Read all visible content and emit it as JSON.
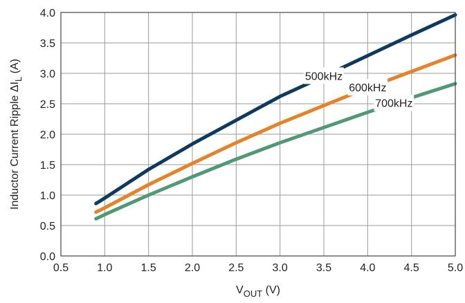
{
  "chart_data": {
    "type": "line",
    "xlabel": {
      "main": "V",
      "sub": "OUT",
      "unit": " (V)"
    },
    "ylabel": {
      "main": "Inductor Current Ripple  ΔI",
      "sub": "L",
      "unit": " (A)"
    },
    "xlim": [
      0.5,
      5.0
    ],
    "ylim": [
      0.0,
      4.0
    ],
    "xticks": [
      "0.5",
      "1.0",
      "1.5",
      "2.0",
      "2.5",
      "3.0",
      "3.5",
      "4.0",
      "4.5",
      "5.0"
    ],
    "yticks": [
      "0.0",
      "0.5",
      "1.0",
      "1.5",
      "2.0",
      "2.5",
      "3.0",
      "3.5",
      "4.0"
    ],
    "grid": true,
    "series": [
      {
        "name": "500kHz",
        "color": "#0f3a5f",
        "x": [
          0.9,
          1.0,
          1.5,
          2.0,
          2.5,
          3.0,
          3.5,
          4.0,
          4.5,
          5.0
        ],
        "y": [
          0.86,
          0.95,
          1.42,
          1.84,
          2.23,
          2.62,
          2.95,
          3.29,
          3.63,
          3.96
        ]
      },
      {
        "name": "600kHz",
        "color": "#e8822a",
        "x": [
          0.9,
          1.0,
          1.5,
          2.0,
          2.5,
          3.0,
          3.5,
          4.0,
          4.5,
          5.0
        ],
        "y": [
          0.72,
          0.79,
          1.17,
          1.52,
          1.86,
          2.18,
          2.47,
          2.76,
          3.03,
          3.3
        ]
      },
      {
        "name": "700kHz",
        "color": "#4f9a74",
        "x": [
          0.9,
          1.0,
          1.5,
          2.0,
          2.5,
          3.0,
          3.5,
          4.0,
          4.5,
          5.0
        ],
        "y": [
          0.61,
          0.68,
          1.0,
          1.3,
          1.59,
          1.86,
          2.11,
          2.36,
          2.6,
          2.83
        ]
      }
    ]
  }
}
